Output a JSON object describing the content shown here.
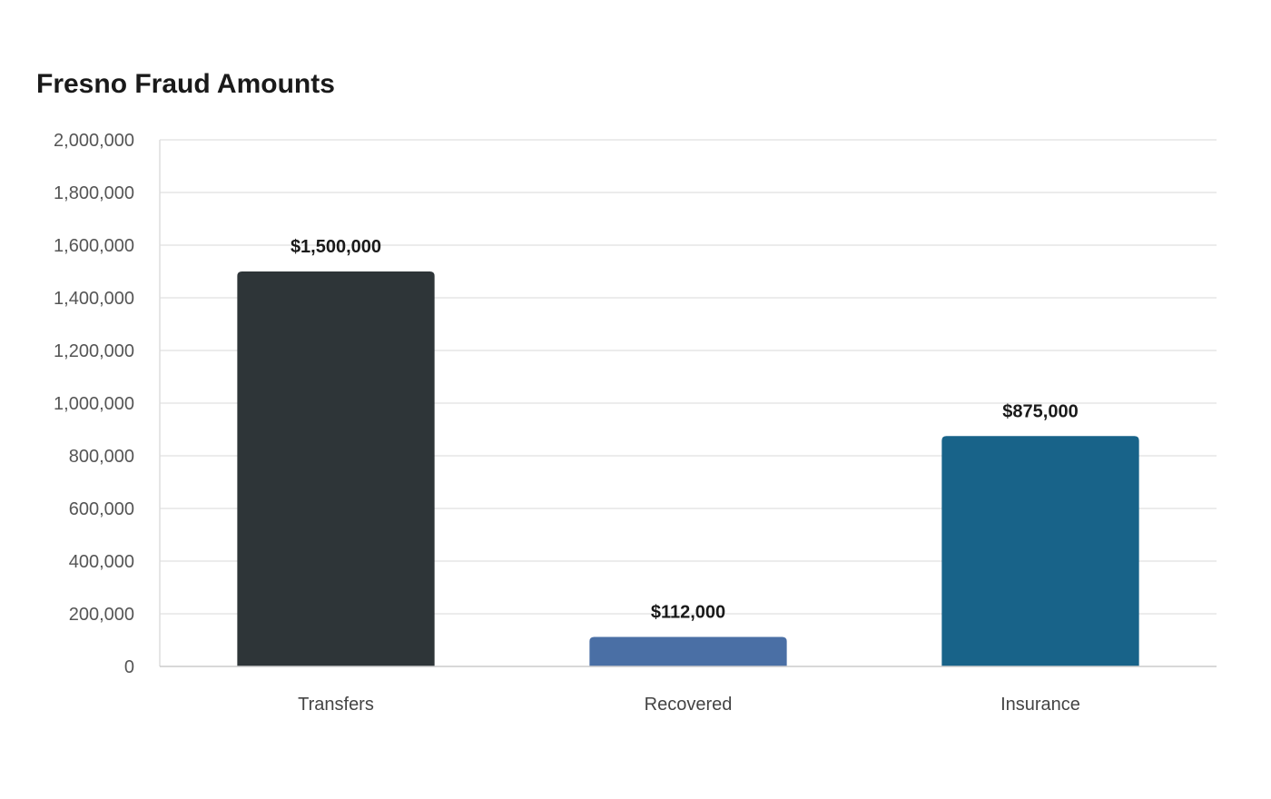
{
  "chart_data": {
    "type": "bar",
    "title": "Fresno Fraud Amounts",
    "xlabel": "",
    "ylabel": "",
    "categories": [
      "Transfers",
      "Recovered",
      "Insurance"
    ],
    "values": [
      1500000,
      112000,
      875000
    ],
    "data_labels": [
      "$1,500,000",
      "$112,000",
      "$875,000"
    ],
    "bar_colors": [
      "#2e3538",
      "#4a6fa5",
      "#186389"
    ],
    "ylim": [
      0,
      2000000
    ],
    "y_ticks": [
      0,
      200000,
      400000,
      600000,
      800000,
      1000000,
      1200000,
      1400000,
      1600000,
      1800000,
      2000000
    ],
    "y_tick_labels": [
      "0",
      "200,000",
      "400,000",
      "600,000",
      "800,000",
      "1,000,000",
      "1,200,000",
      "1,400,000",
      "1,600,000",
      "1,800,000",
      "2,000,000"
    ],
    "grid": true,
    "legend": "none"
  }
}
